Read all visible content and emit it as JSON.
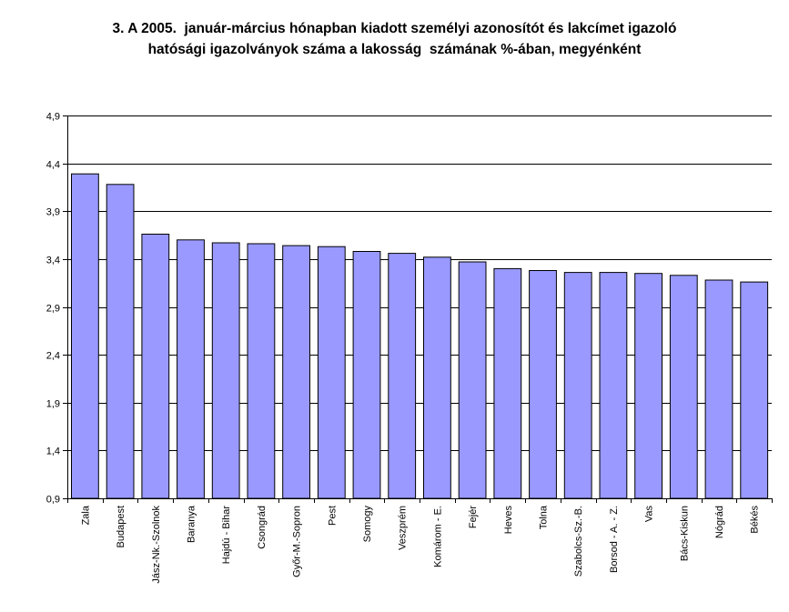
{
  "chart_data": {
    "type": "bar",
    "title_lines": [
      "3. A 2005.  január-március hónapban kiadott személyi azonosítót és lakcímet igazoló",
      "hatósági igazolványok száma a lakosság  számának %-ában, megyénként"
    ],
    "categories": [
      "Zala",
      "Budapest",
      "Jász-Nk.-Szolnok",
      "Baranya",
      "Hajdú - Bihar",
      "Csongrád",
      "Győr-M.-Sopron",
      "Pest",
      "Somogy",
      "Veszprém",
      "Komárom - E.",
      "Fejér",
      "Heves",
      "Tolna",
      "Szabolcs-Sz.-B.",
      "Borsod - A. - Z.",
      "Vas",
      "Bács-Kiskun",
      "Nógrád",
      "Békés"
    ],
    "values": [
      4.29,
      4.18,
      3.66,
      3.6,
      3.57,
      3.56,
      3.54,
      3.53,
      3.48,
      3.46,
      3.42,
      3.37,
      3.3,
      3.28,
      3.26,
      3.26,
      3.25,
      3.23,
      3.18,
      3.16
    ],
    "ylim": [
      0.9,
      4.9
    ],
    "yticks": [
      "0,9",
      "1,4",
      "1,9",
      "2,4",
      "2,9",
      "3,4",
      "3,9",
      "4,4",
      "4,9"
    ],
    "grid": true,
    "legend": "none",
    "colors": {
      "bar_fill": "#9999ff",
      "bar_stroke": "#000000",
      "grid": "#000000"
    }
  }
}
